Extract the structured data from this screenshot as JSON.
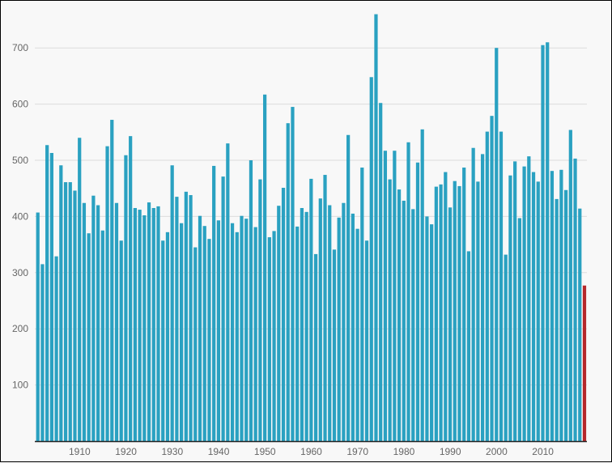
{
  "chart_data": {
    "type": "bar",
    "title": "",
    "xlabel": "",
    "ylabel": "",
    "ylim": [
      0,
      780
    ],
    "grid": true,
    "legend": "none",
    "y_ticks": [
      100,
      200,
      300,
      400,
      500,
      600,
      700
    ],
    "x_ticks": [
      1910,
      1920,
      1930,
      1940,
      1950,
      1960,
      1970,
      1980,
      1990,
      2000,
      2010
    ],
    "x_start": 1901,
    "colors": {
      "bar": "#2aa1c1",
      "highlight": "#b5282b",
      "grid": "#dcdcdc",
      "axis": "#222222"
    },
    "highlight_last": true,
    "values": [
      407,
      315,
      527,
      513,
      329,
      491,
      461,
      461,
      446,
      540,
      424,
      370,
      437,
      420,
      375,
      525,
      572,
      424,
      357,
      509,
      543,
      415,
      412,
      402,
      425,
      415,
      418,
      357,
      372,
      491,
      435,
      388,
      444,
      438,
      345,
      401,
      383,
      360,
      490,
      393,
      471,
      530,
      388,
      372,
      401,
      396,
      500,
      381,
      466,
      617,
      363,
      374,
      419,
      451,
      566,
      595,
      382,
      415,
      408,
      467,
      333,
      432,
      474,
      420,
      341,
      398,
      424,
      545,
      405,
      378,
      487,
      357,
      648,
      760,
      602,
      517,
      466,
      517,
      448,
      428,
      532,
      413,
      496,
      555,
      400,
      386,
      453,
      457,
      479,
      416,
      463,
      454,
      487,
      338,
      522,
      462,
      511,
      551,
      579,
      700,
      551,
      332,
      473,
      498,
      397,
      489,
      507,
      479,
      462,
      705,
      710,
      481,
      431,
      483,
      447,
      554,
      503,
      414,
      277
    ]
  }
}
